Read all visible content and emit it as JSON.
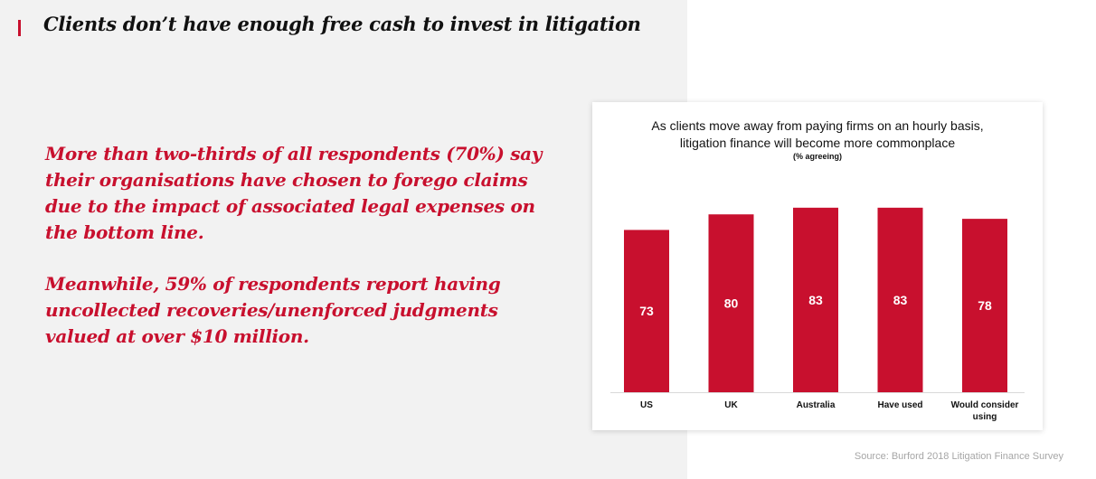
{
  "header": {
    "title": "Clients don’t have enough free cash to invest in litigation",
    "accent_color": "#c8102e"
  },
  "body": {
    "stat1": "More than two-thirds of all respondents (70%) say their organisations have chosen to forego claims due to the impact of associated legal expenses on the bottom line.",
    "stat2": "Meanwhile, 59% of respondents report having uncollected recoveries/unenforced judgments valued at over $10 million."
  },
  "chart_data": {
    "type": "bar",
    "title_line1": "As clients move away from paying firms on an hourly basis,",
    "title_line2": "litigation finance will become more commonplace",
    "subtitle": "(% agreeing)",
    "categories": [
      "US",
      "UK",
      "Australia",
      "Have used",
      "Would consider using"
    ],
    "values": [
      73,
      80,
      83,
      83,
      78
    ],
    "bar_color": "#c8102e",
    "label_color": "#ffffff",
    "ylim": [
      0,
      100
    ],
    "grid": false,
    "legend": "none"
  },
  "footer": {
    "source": "Source: Burford 2018 Litigation Finance Survey"
  }
}
